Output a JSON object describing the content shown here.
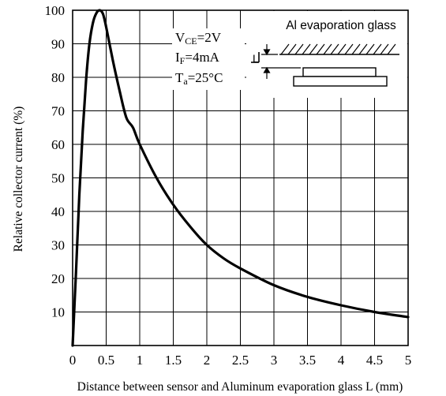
{
  "chart_data": {
    "type": "line",
    "xlabel": "Distance between sensor and Aluminum evaporation glass L (mm)",
    "ylabel": "Relative collector current (%)",
    "xlim": [
      0,
      5
    ],
    "ylim": [
      0,
      100
    ],
    "grid": true,
    "xticks": [
      "0",
      "0.5",
      "1",
      "1.5",
      "2",
      "2.5",
      "3",
      "3.5",
      "4",
      "4.5",
      "5"
    ],
    "yticks": [
      "10",
      "20",
      "30",
      "40",
      "50",
      "60",
      "70",
      "80",
      "90",
      "100"
    ],
    "series": [
      {
        "x": [
          0,
          0.05,
          0.1,
          0.15,
          0.2,
          0.25,
          0.3,
          0.35,
          0.4,
          0.45,
          0.5,
          0.6,
          0.7,
          0.8,
          0.9,
          1.0,
          1.25,
          1.5,
          1.75,
          2.0,
          2.25,
          2.5,
          3.0,
          3.5,
          4.0,
          4.5,
          5.0
        ],
        "values": [
          0,
          22,
          45,
          64,
          79,
          90,
          96,
          99,
          100,
          99,
          95,
          85,
          76,
          68,
          65,
          60,
          50,
          42,
          35.5,
          30,
          26,
          23,
          18,
          14.5,
          12,
          10,
          8.5
        ]
      }
    ],
    "annotations": {
      "vce": {
        "main": "V",
        "sub": "CE",
        "rest": "=2V"
      },
      "if": {
        "main": "I",
        "sub": "F",
        "rest": "=4mA"
      },
      "ta": {
        "main": "T",
        "sub": "a",
        "rest": "=25°C"
      },
      "inset_title": "Al evaporation glass",
      "inset_label": "L"
    }
  }
}
